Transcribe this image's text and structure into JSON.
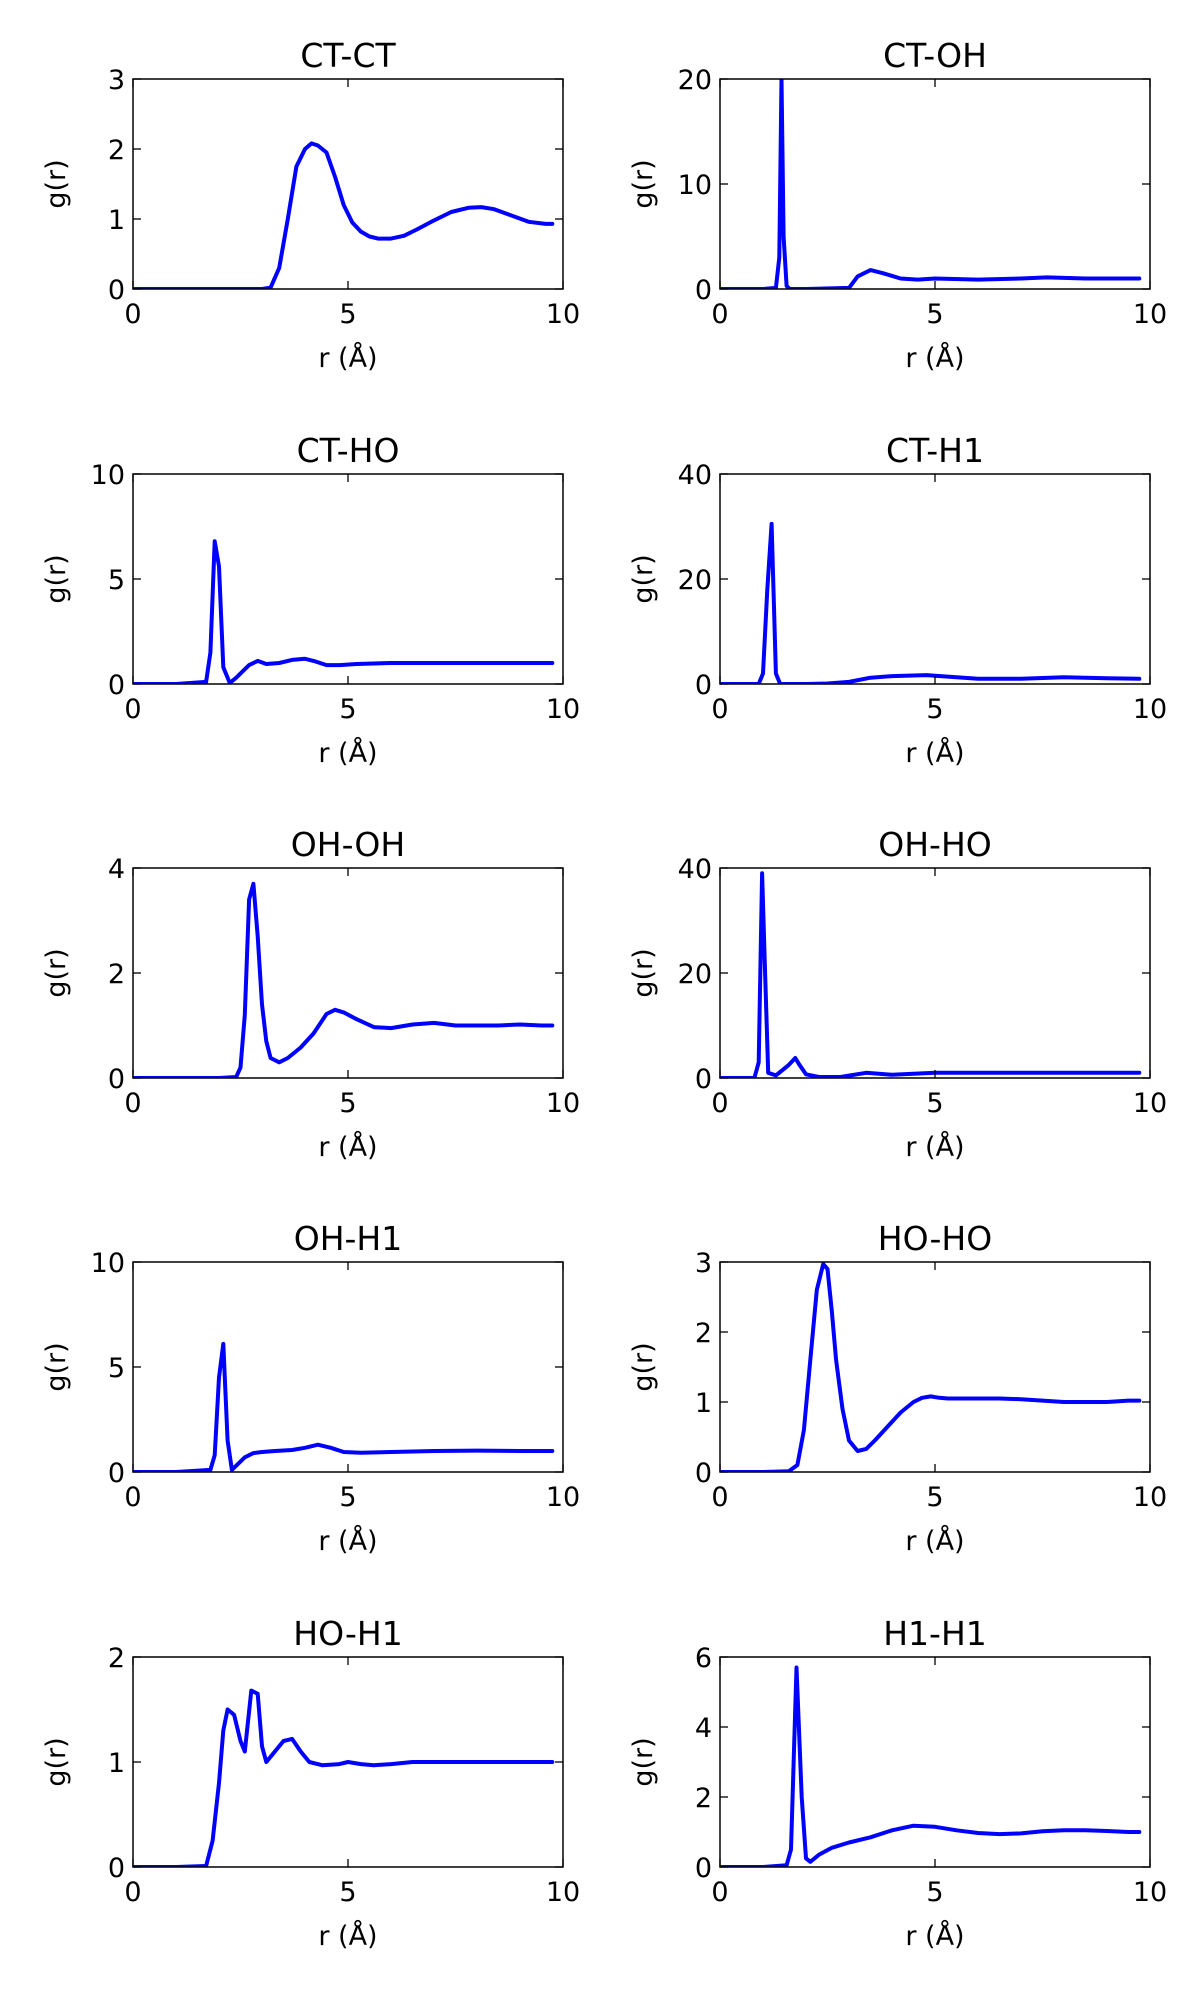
{
  "figure": {
    "line_color": "#0000ff"
  },
  "chart_data": [
    {
      "type": "line",
      "title": "CT-CT",
      "xlabel": "r (Å)",
      "ylabel": "g(r)",
      "xlim": [
        0,
        10
      ],
      "ylim": [
        0,
        3
      ],
      "xticks": [
        0,
        5,
        10
      ],
      "yticks": [
        0,
        1,
        2,
        3
      ],
      "series": [
        {
          "x": [
            0,
            1,
            2,
            3,
            3.2,
            3.4,
            3.6,
            3.8,
            4.0,
            4.15,
            4.3,
            4.5,
            4.7,
            4.9,
            5.1,
            5.3,
            5.5,
            5.7,
            6.0,
            6.3,
            6.6,
            7.0,
            7.4,
            7.8,
            8.1,
            8.4,
            8.8,
            9.2,
            9.6,
            9.75
          ],
          "y": [
            0,
            0,
            0,
            0,
            0.02,
            0.3,
            1.0,
            1.75,
            2.0,
            2.08,
            2.05,
            1.95,
            1.6,
            1.2,
            0.95,
            0.82,
            0.75,
            0.72,
            0.72,
            0.76,
            0.85,
            0.98,
            1.1,
            1.16,
            1.17,
            1.14,
            1.05,
            0.96,
            0.93,
            0.93
          ]
        }
      ]
    },
    {
      "type": "line",
      "title": "CT-OH",
      "xlabel": "r (Å)",
      "ylabel": "g(r)",
      "xlim": [
        0,
        10
      ],
      "ylim": [
        0,
        20
      ],
      "xticks": [
        0,
        5,
        10
      ],
      "yticks": [
        0,
        10,
        20
      ],
      "series": [
        {
          "x": [
            0,
            1.0,
            1.3,
            1.38,
            1.43,
            1.48,
            1.55,
            1.62,
            2.0,
            3.0,
            3.2,
            3.5,
            3.8,
            4.2,
            4.6,
            5.0,
            6.0,
            7.0,
            7.6,
            8.5,
            9.75
          ],
          "y": [
            0,
            0,
            0.1,
            3,
            20,
            5,
            0.3,
            0,
            0,
            0.1,
            1.2,
            1.8,
            1.5,
            1.0,
            0.9,
            1.0,
            0.9,
            1.0,
            1.1,
            1.0,
            1.0
          ]
        }
      ]
    },
    {
      "type": "line",
      "title": "CT-HO",
      "xlabel": "r (Å)",
      "ylabel": "g(r)",
      "xlim": [
        0,
        10
      ],
      "ylim": [
        0,
        10
      ],
      "xticks": [
        0,
        5,
        10
      ],
      "yticks": [
        0,
        5,
        10
      ],
      "series": [
        {
          "x": [
            0,
            1.0,
            1.7,
            1.8,
            1.9,
            2.0,
            2.1,
            2.25,
            2.4,
            2.7,
            2.9,
            3.1,
            3.4,
            3.7,
            4.0,
            4.2,
            4.5,
            4.8,
            5.2,
            6.0,
            7.0,
            8.0,
            9.0,
            9.75
          ],
          "y": [
            0,
            0,
            0.1,
            1.5,
            6.8,
            5.6,
            0.8,
            0.05,
            0.3,
            0.9,
            1.1,
            0.95,
            1.0,
            1.15,
            1.2,
            1.1,
            0.9,
            0.9,
            0.95,
            1.0,
            1.0,
            1.0,
            1.0,
            1.0
          ]
        }
      ]
    },
    {
      "type": "line",
      "title": "CT-H1",
      "xlabel": "r (Å)",
      "ylabel": "g(r)",
      "xlim": [
        0,
        10
      ],
      "ylim": [
        0,
        40
      ],
      "xticks": [
        0,
        5,
        10
      ],
      "yticks": [
        0,
        20,
        40
      ],
      "series": [
        {
          "x": [
            0,
            0.9,
            1.0,
            1.1,
            1.2,
            1.3,
            1.4,
            2.0,
            2.5,
            3.0,
            3.5,
            4.0,
            4.8,
            5.5,
            6.0,
            7.0,
            8.0,
            9.0,
            9.75
          ],
          "y": [
            0,
            0,
            2,
            18,
            30.5,
            2,
            0,
            0,
            0.1,
            0.4,
            1.2,
            1.5,
            1.7,
            1.3,
            1.0,
            1.0,
            1.3,
            1.1,
            1.0
          ]
        }
      ]
    },
    {
      "type": "line",
      "title": "OH-OH",
      "xlabel": "r (Å)",
      "ylabel": "g(r)",
      "xlim": [
        0,
        10
      ],
      "ylim": [
        0,
        4
      ],
      "xticks": [
        0,
        5,
        10
      ],
      "yticks": [
        0,
        2,
        4
      ],
      "series": [
        {
          "x": [
            0,
            1.0,
            2.0,
            2.4,
            2.5,
            2.6,
            2.7,
            2.8,
            2.9,
            3.0,
            3.1,
            3.2,
            3.4,
            3.6,
            3.9,
            4.2,
            4.5,
            4.7,
            4.9,
            5.2,
            5.6,
            6.0,
            6.5,
            7.0,
            7.5,
            8.0,
            8.5,
            9.0,
            9.5,
            9.75
          ],
          "y": [
            0,
            0,
            0,
            0.02,
            0.2,
            1.2,
            3.4,
            3.7,
            2.7,
            1.4,
            0.7,
            0.38,
            0.3,
            0.38,
            0.58,
            0.85,
            1.22,
            1.3,
            1.25,
            1.12,
            0.97,
            0.95,
            1.02,
            1.05,
            1.0,
            1.0,
            1.0,
            1.02,
            1.0,
            1.0
          ]
        }
      ]
    },
    {
      "type": "line",
      "title": "OH-HO",
      "xlabel": "r (Å)",
      "ylabel": "g(r)",
      "xlim": [
        0,
        10
      ],
      "ylim": [
        0,
        40
      ],
      "xticks": [
        0,
        5,
        10
      ],
      "yticks": [
        0,
        20,
        40
      ],
      "series": [
        {
          "x": [
            0,
            0.8,
            0.9,
            0.98,
            1.05,
            1.12,
            1.3,
            1.6,
            1.75,
            1.85,
            2.0,
            2.3,
            2.8,
            3.4,
            4.0,
            5.0,
            6.0,
            7.0,
            8.0,
            9.0,
            9.75
          ],
          "y": [
            0,
            0,
            3,
            39,
            20,
            1,
            0.5,
            2.5,
            3.8,
            2.5,
            0.7,
            0.2,
            0.2,
            1.0,
            0.6,
            1.0,
            1.0,
            1.0,
            1.0,
            1.0,
            1.0
          ]
        }
      ]
    },
    {
      "type": "line",
      "title": "OH-H1",
      "xlabel": "r (Å)",
      "ylabel": "g(r)",
      "xlim": [
        0,
        10
      ],
      "ylim": [
        0,
        10
      ],
      "xticks": [
        0,
        5,
        10
      ],
      "yticks": [
        0,
        5,
        10
      ],
      "series": [
        {
          "x": [
            0,
            1.0,
            1.8,
            1.9,
            2.0,
            2.1,
            2.2,
            2.3,
            2.4,
            2.6,
            2.8,
            3.0,
            3.3,
            3.7,
            4.0,
            4.3,
            4.6,
            4.9,
            5.3,
            6.0,
            7.0,
            8.0,
            9.0,
            9.75
          ],
          "y": [
            0,
            0,
            0.1,
            0.8,
            4.5,
            6.1,
            1.5,
            0.1,
            0.3,
            0.7,
            0.9,
            0.95,
            1.0,
            1.05,
            1.15,
            1.3,
            1.15,
            0.95,
            0.92,
            0.95,
            1.0,
            1.02,
            1.0,
            1.0
          ]
        }
      ]
    },
    {
      "type": "line",
      "title": "HO-HO",
      "xlabel": "r (Å)",
      "ylabel": "g(r)",
      "xlim": [
        0,
        10
      ],
      "ylim": [
        0,
        3
      ],
      "xticks": [
        0,
        5,
        10
      ],
      "yticks": [
        0,
        1,
        2,
        3
      ],
      "series": [
        {
          "x": [
            0,
            1.0,
            1.6,
            1.8,
            1.95,
            2.1,
            2.25,
            2.4,
            2.5,
            2.6,
            2.7,
            2.85,
            3.0,
            3.2,
            3.4,
            3.6,
            3.9,
            4.2,
            4.5,
            4.7,
            4.9,
            5.1,
            5.3,
            5.6,
            6.0,
            6.5,
            7.0,
            7.5,
            8.0,
            8.5,
            9.0,
            9.5,
            9.75
          ],
          "y": [
            0,
            0,
            0.01,
            0.1,
            0.6,
            1.6,
            2.6,
            2.97,
            2.9,
            2.3,
            1.6,
            0.9,
            0.45,
            0.3,
            0.33,
            0.45,
            0.65,
            0.85,
            1.0,
            1.06,
            1.08,
            1.06,
            1.05,
            1.05,
            1.05,
            1.05,
            1.04,
            1.02,
            1.0,
            1.0,
            1.0,
            1.02,
            1.02
          ]
        }
      ]
    },
    {
      "type": "line",
      "title": "HO-H1",
      "xlabel": "r (Å)",
      "ylabel": "g(r)",
      "xlim": [
        0,
        10
      ],
      "ylim": [
        0,
        2
      ],
      "xticks": [
        0,
        5,
        10
      ],
      "yticks": [
        0,
        1,
        2
      ],
      "series": [
        {
          "x": [
            0,
            1.0,
            1.7,
            1.85,
            2.0,
            2.1,
            2.2,
            2.35,
            2.5,
            2.6,
            2.75,
            2.9,
            3.0,
            3.1,
            3.3,
            3.5,
            3.7,
            3.9,
            4.1,
            4.4,
            4.8,
            5.0,
            5.3,
            5.6,
            6.0,
            6.5,
            7.0,
            7.5,
            8.0,
            8.5,
            9.0,
            9.5,
            9.75
          ],
          "y": [
            0,
            0,
            0.01,
            0.25,
            0.8,
            1.3,
            1.5,
            1.45,
            1.2,
            1.1,
            1.68,
            1.65,
            1.15,
            1.0,
            1.1,
            1.2,
            1.22,
            1.1,
            1.0,
            0.97,
            0.98,
            1.0,
            0.98,
            0.97,
            0.98,
            1.0,
            1.0,
            1.0,
            1.0,
            1.0,
            1.0,
            1.0,
            1.0
          ]
        }
      ]
    },
    {
      "type": "line",
      "title": "H1-H1",
      "xlabel": "r (Å)",
      "ylabel": "g(r)",
      "xlim": [
        0,
        10
      ],
      "ylim": [
        0,
        6
      ],
      "xticks": [
        0,
        5,
        10
      ],
      "yticks": [
        0,
        2,
        4,
        6
      ],
      "series": [
        {
          "x": [
            0,
            1.0,
            1.55,
            1.65,
            1.78,
            1.9,
            2.0,
            2.1,
            2.3,
            2.6,
            3.0,
            3.5,
            4.0,
            4.5,
            5.0,
            5.5,
            6.0,
            6.5,
            7.0,
            7.5,
            8.0,
            8.5,
            9.0,
            9.5,
            9.75
          ],
          "y": [
            0,
            0,
            0.05,
            0.5,
            5.7,
            2.0,
            0.25,
            0.15,
            0.35,
            0.55,
            0.7,
            0.85,
            1.05,
            1.18,
            1.15,
            1.05,
            0.97,
            0.94,
            0.96,
            1.02,
            1.05,
            1.05,
            1.03,
            1.0,
            1.0
          ]
        }
      ]
    }
  ]
}
